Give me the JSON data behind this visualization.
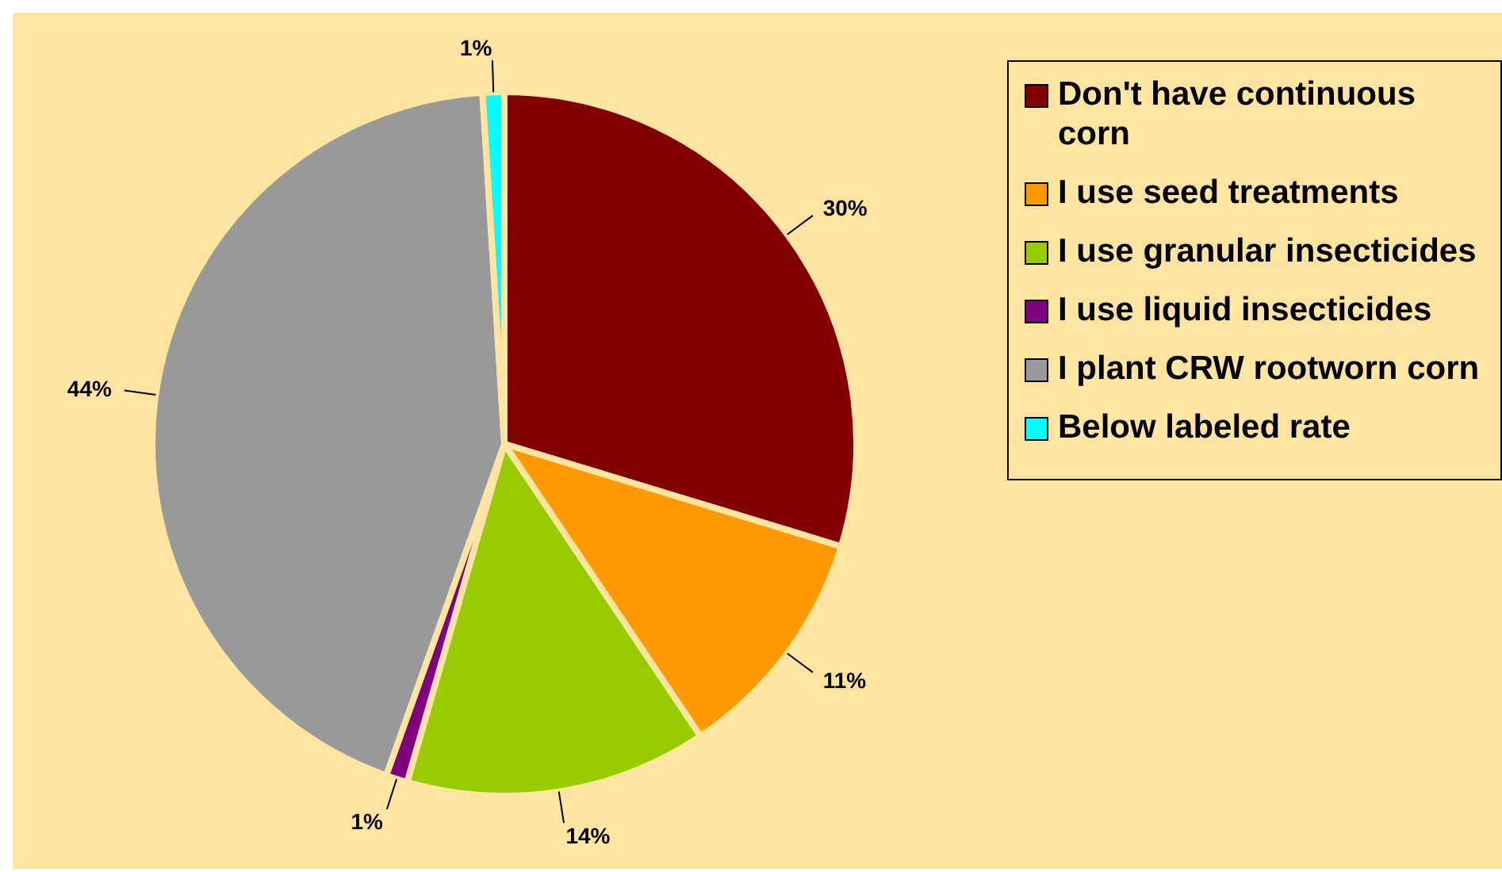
{
  "chart_data": {
    "type": "pie",
    "categories": [
      "Don't have continuous corn",
      "I use seed treatments",
      "I use granular insecticides",
      "I use liquid insecticides",
      "I plant CRW rootworn corn",
      "Below labeled rate"
    ],
    "values": [
      30,
      11,
      14,
      1,
      44,
      1
    ],
    "colors": [
      "#800000",
      "#ff9900",
      "#99cc00",
      "#800080",
      "#999999",
      "#00ffff"
    ],
    "value_labels": [
      "30%",
      "11%",
      "14%",
      "1%",
      "44%",
      "1%"
    ],
    "legend": "right"
  }
}
